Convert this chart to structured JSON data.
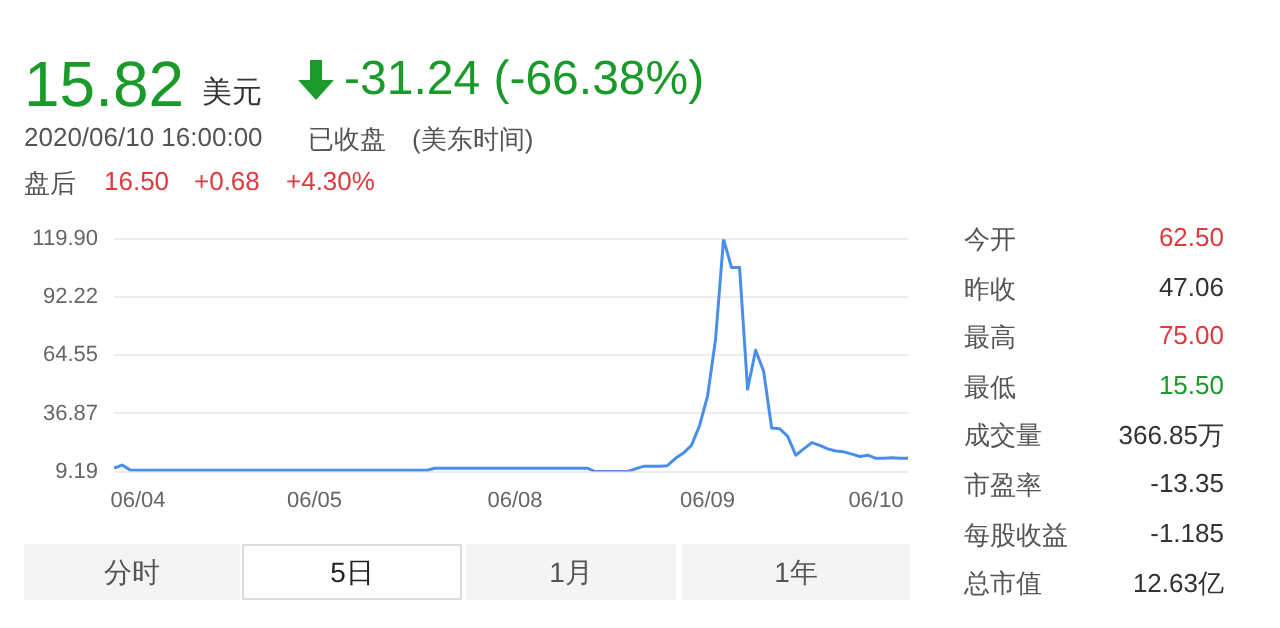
{
  "chart_data": {
    "type": "line",
    "categories": [
      null,
      null,
      null,
      "06/04",
      null,
      null,
      null,
      null,
      null,
      null,
      null,
      null,
      null,
      null,
      null,
      null,
      null,
      null,
      null,
      null,
      null,
      null,
      null,
      null,
      null,
      "06/05",
      null,
      null,
      null,
      null,
      null,
      null,
      null,
      null,
      null,
      null,
      null,
      null,
      null,
      null,
      null,
      null,
      null,
      null,
      null,
      null,
      null,
      null,
      null,
      null,
      "06/08",
      null,
      null,
      null,
      null,
      null,
      null,
      null,
      null,
      null,
      null,
      null,
      null,
      null,
      null,
      null,
      null,
      null,
      null,
      null,
      null,
      null,
      null,
      null,
      "06/09",
      null,
      null,
      null,
      null,
      null,
      null,
      null,
      null,
      null,
      null,
      null,
      null,
      null,
      null,
      null,
      null,
      null,
      null,
      null,
      null,
      "06/10",
      null,
      null,
      null,
      null
    ],
    "series": [
      {
        "color": "#4a8fe7",
        "values": [
          10.8,
          12.3,
          10.0,
          9.8,
          9.8,
          9.8,
          9.8,
          9.8,
          9.8,
          9.8,
          9.8,
          9.8,
          9.8,
          9.8,
          9.8,
          9.8,
          9.8,
          9.8,
          9.8,
          9.8,
          9.8,
          9.8,
          9.8,
          9.8,
          9.8,
          9.8,
          9.8,
          9.8,
          9.8,
          9.8,
          9.8,
          9.8,
          9.8,
          9.8,
          9.8,
          9.8,
          9.8,
          9.8,
          9.8,
          9.8,
          10.8,
          10.8,
          10.8,
          10.8,
          10.8,
          10.8,
          10.8,
          10.8,
          10.8,
          10.8,
          10.8,
          10.8,
          10.8,
          10.8,
          10.8,
          10.8,
          10.8,
          10.8,
          10.8,
          10.8,
          9.2,
          9.2,
          9.2,
          9.2,
          9.2,
          10.5,
          11.7,
          11.7,
          11.7,
          12.0,
          15.5,
          18.0,
          21.7,
          31,
          45,
          72,
          119.9,
          106.4,
          106.4,
          48.4,
          67,
          57,
          30,
          29.6,
          26,
          17,
          20,
          23,
          21.7,
          20,
          19,
          18.6,
          17.5,
          16.4,
          17,
          15.5,
          15.5,
          15.8,
          15.5,
          15.5
        ]
      }
    ],
    "ylim": [
      9.19,
      119.9
    ],
    "yticks": [
      9.19,
      36.87,
      64.55,
      92.22,
      {
        "value": 119.9,
        "label": "119.90"
      }
    ],
    "grid": "y",
    "legend": false,
    "marker": "none",
    "annotations": [
      "15.82",
      "美元",
      "-31.24 (-66.38%)",
      "2020/06/10 16:00:00",
      "已收盘",
      "(美东时间)",
      "盘后",
      "16.50",
      "+0.68",
      "+4.30%",
      "今开",
      "62.50",
      "昨收",
      "47.06",
      "最高",
      "75.00",
      "最低",
      "15.50",
      "成交量",
      "366.85万",
      "市盈率",
      "-13.35",
      "每股收益",
      "-1.185",
      "总市值",
      "12.63亿",
      "分时",
      "5日",
      "1月",
      "1年"
    ]
  }
}
